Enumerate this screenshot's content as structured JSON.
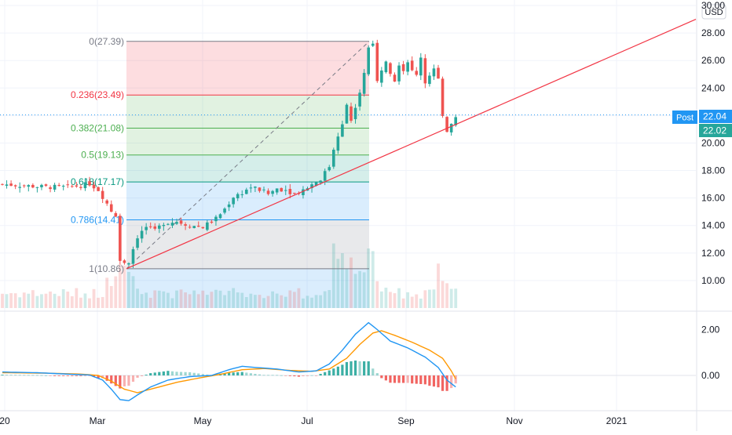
{
  "chart_data": {
    "type": "candlestick",
    "currency_badge": "USD",
    "y_axis_ticks": [
      "30.00",
      "28.00",
      "26.00",
      "24.00",
      "22.00",
      "20.00",
      "18.00",
      "16.00",
      "14.00",
      "12.00",
      "10.00"
    ],
    "y_tick_values": [
      30,
      28,
      26,
      24,
      22,
      20,
      18,
      16,
      14,
      12,
      10
    ],
    "ylim": [
      8.0,
      30.4
    ],
    "time_axis_labels": [
      "20",
      "Mar",
      "May",
      "Jul",
      "Sep",
      "Nov",
      "2021"
    ],
    "price_badges": {
      "post_label": "Post",
      "post_value": "22.04",
      "last_value": "22.02",
      "post_color": "#2196f3",
      "last_color": "#26a69a"
    },
    "fibonacci": {
      "levels": [
        {
          "label": "0(27.39)",
          "ratio": 0,
          "price": 27.39,
          "color": "#787b86"
        },
        {
          "label": "0.236(23.49)",
          "ratio": 0.236,
          "price": 23.49,
          "color": "#f23645"
        },
        {
          "label": "0.382(21.08)",
          "ratio": 0.382,
          "price": 21.08,
          "color": "#4caf50"
        },
        {
          "label": "0.5(19.13)",
          "ratio": 0.5,
          "price": 19.13,
          "color": "#4caf50"
        },
        {
          "label": "0.618(17.17)",
          "ratio": 0.618,
          "price": 17.17,
          "color": "#089981"
        },
        {
          "label": "0.786(14.41)",
          "ratio": 0.786,
          "price": 14.41,
          "color": "#2196f3"
        },
        {
          "label": "1(10.86)",
          "ratio": 1,
          "price": 10.86,
          "color": "#787b86"
        }
      ],
      "zone_colors": [
        "#f23645",
        "#4caf50",
        "#4caf50",
        "#089981",
        "#2196f3",
        "#787b86",
        "#2196f3"
      ]
    },
    "trendline": {
      "from_price": 10.86,
      "to_price": 29.0,
      "color": "#f23645"
    },
    "macd": {
      "axis_ticks": [
        "2.00",
        "0.00"
      ],
      "axis_values": [
        2.0,
        0.0
      ],
      "ylim": [
        -1.4,
        2.7
      ],
      "macd_color": "#2196f3",
      "signal_color": "#ff9800",
      "hist_up": "#26a69a",
      "hist_down": "#ef5350"
    },
    "colors": {
      "up": "#26a69a",
      "down": "#ef5350",
      "post_line": "#2196f3",
      "grid": "#f0f3fa",
      "axis_text": "#131722"
    }
  }
}
